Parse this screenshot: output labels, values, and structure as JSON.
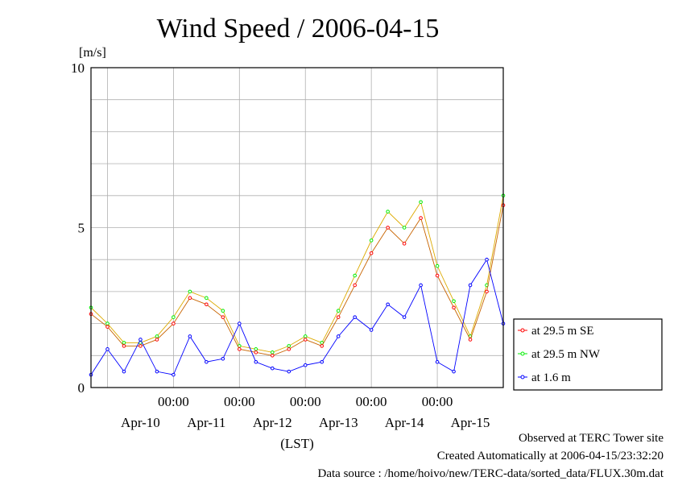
{
  "chart_data": {
    "type": "line",
    "title": "Wind Speed / 2006-04-15",
    "ylabel": "[m/s]",
    "xlabel": "(LST)",
    "ylim": [
      0,
      10
    ],
    "yticks": [
      "0",
      "5",
      "10"
    ],
    "x_time_ticks": [
      "00:00",
      "00:00",
      "00:00",
      "00:00",
      "00:00"
    ],
    "x_date_labels": [
      "Apr-10",
      "Apr-11",
      "Apr-12",
      "Apr-13",
      "Apr-14",
      "Apr-15"
    ],
    "x_start": "2006-04-09 18:00",
    "x_end": "2006-04-16 00:00",
    "grid": true,
    "legend_position": "right",
    "series": [
      {
        "name": "at 29.5 m SE",
        "color": "#ff0000",
        "x": [
          "2006-04-09 18:00",
          "2006-04-10 00:00",
          "2006-04-10 06:00",
          "2006-04-10 12:00",
          "2006-04-10 18:00",
          "2006-04-11 00:00",
          "2006-04-11 06:00",
          "2006-04-11 12:00",
          "2006-04-11 18:00",
          "2006-04-12 00:00",
          "2006-04-12 06:00",
          "2006-04-12 12:00",
          "2006-04-12 18:00",
          "2006-04-13 00:00",
          "2006-04-13 06:00",
          "2006-04-13 12:00",
          "2006-04-13 18:00",
          "2006-04-14 00:00",
          "2006-04-14 06:00",
          "2006-04-14 12:00",
          "2006-04-14 18:00",
          "2006-04-15 00:00",
          "2006-04-15 06:00",
          "2006-04-15 12:00",
          "2006-04-15 18:00",
          "2006-04-16 00:00"
        ],
        "values": [
          2.3,
          1.9,
          1.3,
          1.3,
          1.5,
          2.0,
          2.8,
          2.6,
          2.2,
          1.2,
          1.1,
          1.0,
          1.2,
          1.5,
          1.3,
          2.2,
          3.2,
          4.2,
          5.0,
          4.5,
          5.3,
          3.5,
          2.5,
          1.5,
          3.0,
          5.7
        ]
      },
      {
        "name": "at 29.5 m NW",
        "color": "#00ee00",
        "x": [
          "2006-04-09 18:00",
          "2006-04-10 00:00",
          "2006-04-10 06:00",
          "2006-04-10 12:00",
          "2006-04-10 18:00",
          "2006-04-11 00:00",
          "2006-04-11 06:00",
          "2006-04-11 12:00",
          "2006-04-11 18:00",
          "2006-04-12 00:00",
          "2006-04-12 06:00",
          "2006-04-12 12:00",
          "2006-04-12 18:00",
          "2006-04-13 00:00",
          "2006-04-13 06:00",
          "2006-04-13 12:00",
          "2006-04-13 18:00",
          "2006-04-14 00:00",
          "2006-04-14 06:00",
          "2006-04-14 12:00",
          "2006-04-14 18:00",
          "2006-04-15 00:00",
          "2006-04-15 06:00",
          "2006-04-15 12:00",
          "2006-04-15 18:00",
          "2006-04-16 00:00"
        ],
        "values": [
          2.5,
          2.0,
          1.4,
          1.4,
          1.6,
          2.2,
          3.0,
          2.8,
          2.4,
          1.3,
          1.2,
          1.1,
          1.3,
          1.6,
          1.4,
          2.4,
          3.5,
          4.6,
          5.5,
          5.0,
          5.8,
          3.8,
          2.7,
          1.6,
          3.2,
          6.0
        ]
      },
      {
        "name": "at 1.6 m",
        "color": "#0000ff",
        "x": [
          "2006-04-09 18:00",
          "2006-04-10 00:00",
          "2006-04-10 06:00",
          "2006-04-10 12:00",
          "2006-04-10 18:00",
          "2006-04-11 00:00",
          "2006-04-11 06:00",
          "2006-04-11 12:00",
          "2006-04-11 18:00",
          "2006-04-12 00:00",
          "2006-04-12 06:00",
          "2006-04-12 12:00",
          "2006-04-12 18:00",
          "2006-04-13 00:00",
          "2006-04-13 06:00",
          "2006-04-13 12:00",
          "2006-04-13 18:00",
          "2006-04-14 00:00",
          "2006-04-14 06:00",
          "2006-04-14 12:00",
          "2006-04-14 18:00",
          "2006-04-15 00:00",
          "2006-04-15 06:00",
          "2006-04-15 12:00",
          "2006-04-15 18:00",
          "2006-04-16 00:00"
        ],
        "values": [
          0.4,
          1.2,
          0.5,
          1.5,
          0.5,
          0.4,
          1.6,
          0.8,
          0.9,
          2.0,
          0.8,
          0.6,
          0.5,
          0.7,
          0.8,
          1.6,
          2.2,
          1.8,
          2.6,
          2.2,
          3.2,
          0.8,
          0.5,
          3.2,
          4.0,
          2.0
        ]
      }
    ]
  },
  "footer": {
    "observed": "Observed at TERC Tower site",
    "created": "Created Automatically at 2006-04-15/23:32:20",
    "source": "Data source : /home/hoivo/new/TERC-data/sorted_data/FLUX.30m.dat"
  }
}
